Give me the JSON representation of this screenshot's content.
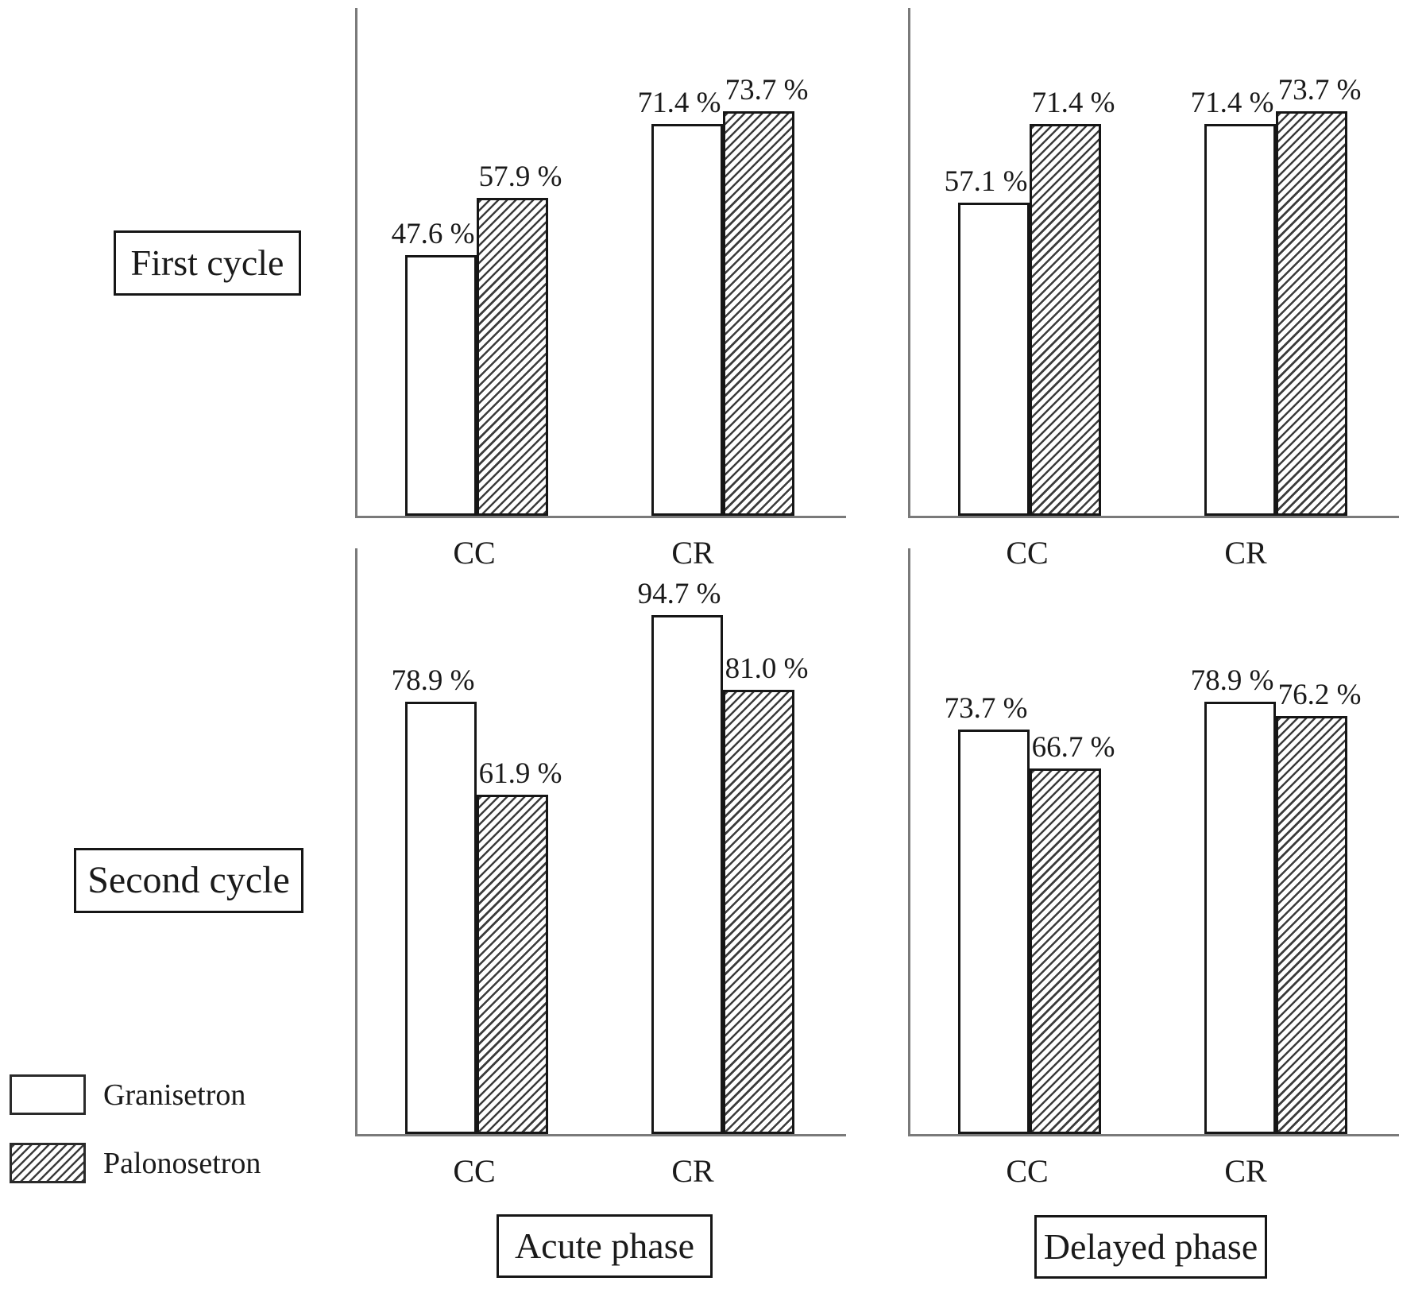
{
  "figure": {
    "row_labels": [
      "First cycle",
      "Second cycle"
    ],
    "col_labels": [
      "Acute phase",
      "Delayed phase"
    ],
    "legend": [
      {
        "name": "Granisetron",
        "swatch": "white"
      },
      {
        "name": "Palonosetron",
        "swatch": "hatched"
      }
    ],
    "colors": {
      "background": "#ffffff",
      "ink": "#1a1a1a",
      "axis": "#7a7a7a",
      "hatch": "#3c3c3c",
      "bar_fill": "#ffffff"
    }
  },
  "chart_data": {
    "type": "bar",
    "unit": "%",
    "categories": [
      "CC",
      "CR"
    ],
    "series_names": [
      "Granisetron",
      "Palonosetron"
    ],
    "ylim": [
      0,
      100
    ],
    "grid": false,
    "axes_ticks": "none",
    "legend_position": "bottom-left",
    "value_label_format": "{value} %",
    "panels": [
      {
        "cycle": "First cycle",
        "phase": "Acute phase",
        "series": [
          {
            "name": "Granisetron",
            "values": [
              47.6,
              71.4
            ],
            "labels": [
              "47.6 %",
              "71.4 %"
            ]
          },
          {
            "name": "Palonosetron",
            "values": [
              57.9,
              73.7
            ],
            "labels": [
              "57.9 %",
              "73.7 %"
            ]
          }
        ]
      },
      {
        "cycle": "First cycle",
        "phase": "Delayed phase",
        "series": [
          {
            "name": "Granisetron",
            "values": [
              57.1,
              71.4
            ],
            "labels": [
              "57.1 %",
              "71.4 %"
            ]
          },
          {
            "name": "Palonosetron",
            "values": [
              71.4,
              73.7
            ],
            "labels": [
              "71.4 %",
              "73.7 %"
            ]
          }
        ]
      },
      {
        "cycle": "Second cycle",
        "phase": "Acute phase",
        "series": [
          {
            "name": "Granisetron",
            "values": [
              78.9,
              94.7
            ],
            "labels": [
              "78.9 %",
              "94.7 %"
            ]
          },
          {
            "name": "Palonosetron",
            "values": [
              61.9,
              81.0
            ],
            "labels": [
              "61.9 %",
              "81.0 %"
            ]
          }
        ]
      },
      {
        "cycle": "Second cycle",
        "phase": "Delayed phase",
        "series": [
          {
            "name": "Granisetron",
            "values": [
              73.7,
              78.9
            ],
            "labels": [
              "73.7 %",
              "78.9 %"
            ]
          },
          {
            "name": "Palonosetron",
            "values": [
              66.7,
              76.2
            ],
            "labels": [
              "66.7 %",
              "76.2 %"
            ]
          }
        ]
      }
    ]
  }
}
